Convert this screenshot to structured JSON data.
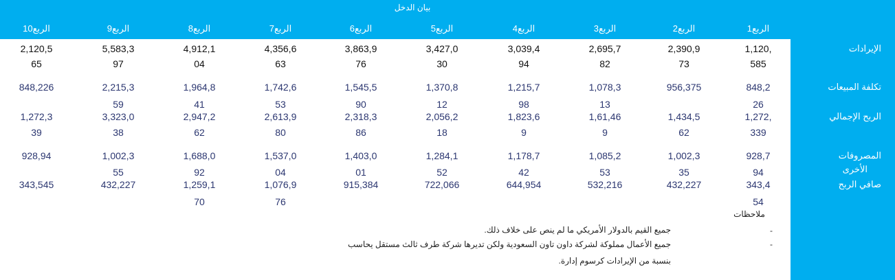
{
  "header": {
    "title": "بيان الدخل",
    "background": "#00aeef"
  },
  "quarters": [
    "الربع1",
    "الربع2",
    "الربع3",
    "الربع4",
    "الربع5",
    "الربع6",
    "الربع7",
    "الربع8",
    "الربع9",
    "الربع10"
  ],
  "rows": [
    {
      "label": "الإيرادات",
      "cells": [
        [
          "1,120,",
          "585"
        ],
        [
          "2,390,9",
          "73"
        ],
        [
          "2,695,7",
          "82"
        ],
        [
          "3,039,4",
          "94"
        ],
        [
          "3,427,0",
          "30"
        ],
        [
          "3,863,9",
          "76"
        ],
        [
          "4,356,6",
          "63"
        ],
        [
          "4,912,1",
          "04"
        ],
        [
          "5,583,3",
          "97"
        ],
        [
          "2,120,5",
          "65"
        ]
      ]
    },
    {
      "label": "تكلفة المبيعات",
      "cells": [
        [
          "848,2",
          "26"
        ],
        [
          "956,375",
          ""
        ],
        [
          "1,078,3",
          "13"
        ],
        [
          "1,215,7",
          "98"
        ],
        [
          "1,370,8",
          "12"
        ],
        [
          "1,545,5",
          "90"
        ],
        [
          "1,742,6",
          "53"
        ],
        [
          "1,964,8",
          "41"
        ],
        [
          "2,215,3",
          "59"
        ],
        [
          "848,226",
          ""
        ]
      ]
    },
    {
      "label": "الربح الإجمالي",
      "cells": [
        [
          "1,272,",
          "339"
        ],
        [
          "1,434,5",
          "62"
        ],
        [
          "1,61,46",
          "9"
        ],
        [
          "1,823,6",
          "9"
        ],
        [
          "2,056,2",
          "18"
        ],
        [
          "2,318,3",
          "86"
        ],
        [
          "2,613,9",
          "80"
        ],
        [
          "2,947,2",
          "62"
        ],
        [
          "3,323,0",
          "38"
        ],
        [
          "1,272,3",
          "39"
        ]
      ]
    },
    {
      "label": "المصروفات",
      "label2": "الأخرى",
      "cells": [
        [
          "928,7",
          "94"
        ],
        [
          "1,002,3",
          "35"
        ],
        [
          "1,085,2",
          "53"
        ],
        [
          "1,178,7",
          "42"
        ],
        [
          "1,284,1",
          "52"
        ],
        [
          "1,403,0",
          "01"
        ],
        [
          "1,537,0",
          "04"
        ],
        [
          "1,688,0",
          "92"
        ],
        [
          "1,002,3",
          "55"
        ],
        [
          "928,94",
          ""
        ]
      ]
    },
    {
      "label": "صافي الربح",
      "cells": [
        [
          "343,4",
          "54"
        ],
        [
          "432,227",
          ""
        ],
        [
          "532,216",
          ""
        ],
        [
          "644,954",
          ""
        ],
        [
          "722,066",
          ""
        ],
        [
          "915,384",
          ""
        ],
        [
          "1,076,9",
          "76"
        ],
        [
          "1,259,1",
          "70"
        ],
        [
          "432,227",
          ""
        ],
        [
          "343,545",
          ""
        ]
      ]
    }
  ],
  "notes": {
    "label": "ملاحظات",
    "bullet": "-",
    "items": [
      "جميع القيم بالدولار الأمريكي ما لم ينص على خلاف ذلك.",
      "جميع الأعمال مملوكة لشركة داون تاون السعودية ولكن تديرها شركة طرف ثالث مستقل يحاسب",
      "بنسبة من الإيرادات كرسوم إدارة."
    ]
  }
}
